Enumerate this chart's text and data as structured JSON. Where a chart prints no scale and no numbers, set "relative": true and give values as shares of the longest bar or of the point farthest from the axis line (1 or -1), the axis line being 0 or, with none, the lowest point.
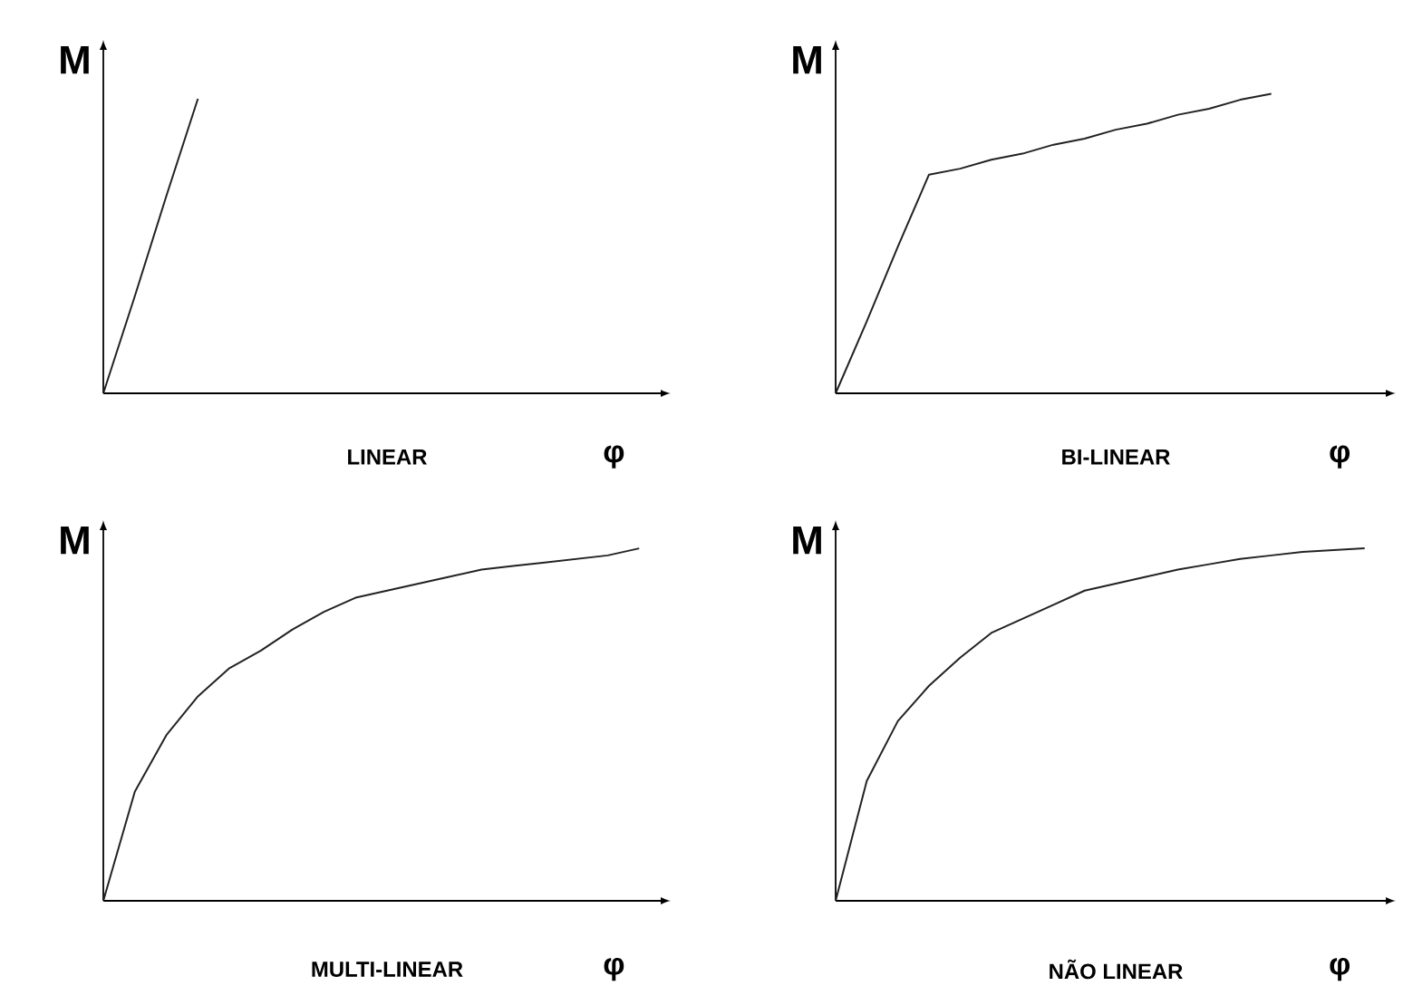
{
  "chart_data": [
    {
      "type": "line",
      "relative": true,
      "title": "LINEAR",
      "xlabel": "φ",
      "ylabel": "M",
      "color": "#222222",
      "categories": [
        null,
        null,
        null,
        null,
        null,
        null,
        null,
        null,
        null,
        null,
        null,
        null,
        null,
        null,
        null,
        null,
        null,
        null
      ],
      "values": [
        0,
        0.33,
        0.67,
        1,
        null,
        null,
        null,
        null,
        null,
        null,
        null,
        null,
        null,
        null,
        null,
        null,
        null,
        null
      ]
    },
    {
      "type": "line",
      "relative": true,
      "title": "BI-LINEAR",
      "xlabel": "φ",
      "ylabel": "M",
      "color": "#222222",
      "categories": [
        null,
        null,
        null,
        null,
        null,
        null,
        null,
        null,
        null,
        null,
        null,
        null,
        null,
        null,
        null,
        null,
        null,
        null
      ],
      "values": [
        0,
        0.24,
        0.49,
        0.73,
        0.75,
        0.78,
        0.8,
        0.83,
        0.85,
        0.88,
        0.9,
        0.93,
        0.95,
        0.98,
        1,
        null,
        null,
        null
      ]
    },
    {
      "type": "line",
      "relative": true,
      "title": "MULTI-LINEAR",
      "xlabel": "φ",
      "ylabel": "M",
      "color": "#222222",
      "categories": [
        null,
        null,
        null,
        null,
        null,
        null,
        null,
        null,
        null,
        null,
        null,
        null,
        null,
        null,
        null,
        null,
        null,
        null
      ],
      "values": [
        0,
        0.31,
        0.47,
        0.58,
        0.66,
        0.71,
        0.77,
        0.82,
        0.86,
        0.88,
        0.9,
        0.92,
        0.94,
        0.95,
        0.96,
        0.97,
        0.98,
        1
      ]
    },
    {
      "type": "line",
      "relative": true,
      "title": "NÃO LINEAR",
      "xlabel": "φ",
      "ylabel": "M",
      "color": "#222222",
      "categories": [
        null,
        null,
        null,
        null,
        null,
        null,
        null,
        null,
        null,
        null,
        null,
        null,
        null,
        null,
        null,
        null,
        null,
        null
      ],
      "values": [
        0,
        0.34,
        0.51,
        0.61,
        0.69,
        0.76,
        0.8,
        0.84,
        0.88,
        0.9,
        0.92,
        0.94,
        0.955,
        0.97,
        0.98,
        0.99,
        0.995,
        1
      ]
    }
  ]
}
